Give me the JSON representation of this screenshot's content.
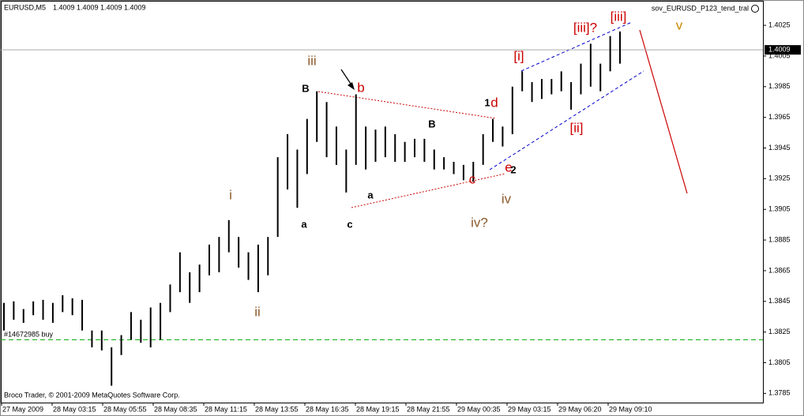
{
  "chart_data": {
    "type": "range_bar",
    "symbol": "EURUSD,M5",
    "ohlc": [
      1.4009,
      1.4009,
      1.4009,
      1.4009
    ],
    "indicator": "sov_EURUSD_P123_tend_tral",
    "copyright": "Broco Trader, © 2001-2009 MetaQuotes Software Corp.",
    "last_price": 1.4009,
    "order_line": {
      "label": "#14672985 buy",
      "value": 1.382
    },
    "bar_color": "#000000",
    "ylim": [
      1.3779,
      1.4041
    ],
    "yticks": [
      1.4025,
      1.4005,
      1.3985,
      1.3965,
      1.3945,
      1.3925,
      1.3905,
      1.3885,
      1.3865,
      1.3845,
      1.3825,
      1.3805,
      1.3785
    ],
    "grid": false,
    "x_labels": [
      "27 May 2009",
      "28 May 03:15",
      "28 May 05:55",
      "28 May 08:35",
      "28 May 11:15",
      "28 May 13:55",
      "28 May 16:35",
      "28 May 19:15",
      "28 May 21:55",
      "29 May 00:35",
      "29 May 03:15",
      "29 May 06:20",
      "29 May 09:10"
    ],
    "high": [
      1.3844,
      1.3845,
      1.384,
      1.3845,
      1.3846,
      1.3844,
      1.3849,
      1.3847,
      1.3846,
      1.3826,
      1.3826,
      1.3815,
      1.3823,
      1.3838,
      1.3833,
      1.3841,
      1.3844,
      1.3856,
      1.3877,
      1.3864,
      1.3869,
      1.3882,
      1.3887,
      1.3898,
      1.3887,
      1.3877,
      1.3882,
      1.3887,
      1.3939,
      1.3954,
      1.3944,
      1.3964,
      1.3982,
      1.3975,
      1.3959,
      1.3944,
      1.398,
      1.3959,
      1.3957,
      1.3959,
      1.3954,
      1.3949,
      1.3951,
      1.3951,
      1.3944,
      1.3939,
      1.3936,
      1.3934,
      1.3936,
      1.3954,
      1.3964,
      1.3959,
      1.3985,
      1.3995,
      1.3988,
      1.399,
      1.399,
      1.3995,
      1.3988,
      1.4,
      1.4013,
      1.4,
      1.4018,
      1.4021
    ],
    "low": [
      1.3826,
      1.3833,
      1.3831,
      1.3836,
      1.3833,
      1.3831,
      1.3838,
      1.3836,
      1.3826,
      1.3815,
      1.3813,
      1.379,
      1.381,
      1.382,
      1.3818,
      1.3815,
      1.382,
      1.3838,
      1.3851,
      1.3844,
      1.3851,
      1.3862,
      1.3864,
      1.3877,
      1.3867,
      1.3859,
      1.3851,
      1.3862,
      1.3887,
      1.3918,
      1.3906,
      1.3928,
      1.3949,
      1.3939,
      1.3934,
      1.3916,
      1.3934,
      1.3931,
      1.3936,
      1.3939,
      1.3936,
      1.3936,
      1.3939,
      1.3936,
      1.3931,
      1.3931,
      1.3928,
      1.3924,
      1.3923,
      1.3934,
      1.3949,
      1.3946,
      1.3954,
      1.3982,
      1.3975,
      1.3977,
      1.398,
      1.3982,
      1.397,
      1.398,
      1.3985,
      1.3982,
      1.3995,
      1.4
    ],
    "annotations": [
      {
        "text": "iii",
        "color": "#8b5a2b"
      },
      {
        "text": "b",
        "color": "#cc0000"
      },
      {
        "text": "B",
        "color": "#000000"
      },
      {
        "text": "1",
        "color": "#000000"
      },
      {
        "text": "d",
        "color": "#cc0000"
      },
      {
        "text": "B",
        "color": "#000000"
      },
      {
        "text": "i",
        "color": "#8b5a2b"
      },
      {
        "text": "a",
        "color": "#000000"
      },
      {
        "text": "c",
        "color": "#000000"
      },
      {
        "text": "a",
        "color": "#000000"
      },
      {
        "text": "c",
        "color": "#cc0000"
      },
      {
        "text": "e",
        "color": "#cc0000"
      },
      {
        "text": "2",
        "color": "#000000"
      },
      {
        "text": "iv",
        "color": "#8b5a2b"
      },
      {
        "text": "iv?",
        "color": "#8b5a2b"
      },
      {
        "text": "ii",
        "color": "#8b5a2b"
      },
      {
        "text": "[i]",
        "color": "#cc0000"
      },
      {
        "text": "[ii]",
        "color": "#cc0000"
      },
      {
        "text": "[iii]?",
        "color": "#cc0000"
      },
      {
        "text": "[iii]",
        "color": "#cc0000"
      },
      {
        "text": "v",
        "color": "#cc8800"
      }
    ]
  }
}
